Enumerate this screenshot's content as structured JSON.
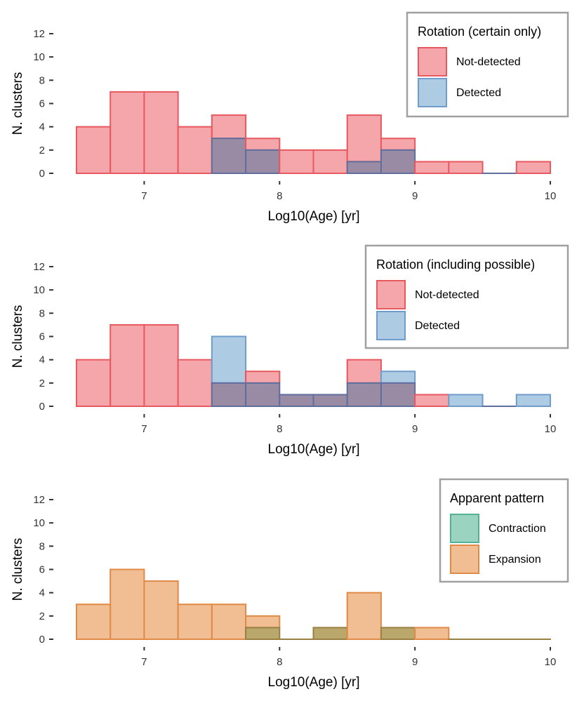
{
  "colors": {
    "red_fill": "#f4a6aa",
    "red_stroke": "#e8585f",
    "blue_fill": "#aecbe4",
    "blue_stroke": "#6f9ccb",
    "overlap_fill": "#9a8ba5",
    "overlap_stroke": "#5f6e9d",
    "green_fill": "#9ad3bf",
    "green_stroke": "#52b292",
    "orange_fill": "#f1bd92",
    "orange_stroke": "#e08a47",
    "olive_fill": "#b9a76c",
    "olive_stroke": "#9a8040",
    "axis": "#333333",
    "legend_border": "#a0a0a0"
  },
  "chart_data": [
    {
      "type": "bar",
      "subtype": "overlaid-histogram",
      "title": "",
      "xlabel": "Log10(Age) [yr]",
      "ylabel": "N. clusters",
      "xlim": [
        6.5,
        10
      ],
      "ylim": [
        0,
        12
      ],
      "xticks": [
        "7",
        "8",
        "9",
        "10"
      ],
      "yticks": [
        "0",
        "2",
        "4",
        "6",
        "8",
        "10",
        "12"
      ],
      "bin_edges": [
        6.5,
        6.75,
        7.0,
        7.25,
        7.5,
        7.75,
        8.0,
        8.25,
        8.5,
        8.75,
        9.0,
        9.25,
        9.5,
        9.75,
        10.0
      ],
      "legend": {
        "title": "Rotation (certain only)",
        "placement": "top-right"
      },
      "series": [
        {
          "name": "Not-detected",
          "color": "red",
          "values": [
            4,
            7,
            7,
            4,
            5,
            3,
            2,
            2,
            5,
            3,
            1,
            1,
            0,
            1
          ]
        },
        {
          "name": "Detected",
          "color": "blue",
          "values": [
            0,
            0,
            0,
            0,
            3,
            2,
            0,
            0,
            1,
            2,
            0,
            0,
            0,
            0
          ]
        }
      ]
    },
    {
      "type": "bar",
      "subtype": "overlaid-histogram",
      "title": "",
      "xlabel": "Log10(Age) [yr]",
      "ylabel": "N. clusters",
      "xlim": [
        6.5,
        10
      ],
      "ylim": [
        0,
        12
      ],
      "xticks": [
        "7",
        "8",
        "9",
        "10"
      ],
      "yticks": [
        "0",
        "2",
        "4",
        "6",
        "8",
        "10",
        "12"
      ],
      "bin_edges": [
        6.5,
        6.75,
        7.0,
        7.25,
        7.5,
        7.75,
        8.0,
        8.25,
        8.5,
        8.75,
        9.0,
        9.25,
        9.5,
        9.75,
        10.0
      ],
      "legend": {
        "title": "Rotation (including possible)",
        "placement": "top-right"
      },
      "series": [
        {
          "name": "Not-detected",
          "color": "red",
          "values": [
            4,
            7,
            7,
            4,
            2,
            3,
            1,
            1,
            4,
            2,
            1,
            0,
            0,
            0
          ]
        },
        {
          "name": "Detected",
          "color": "blue",
          "values": [
            0,
            0,
            0,
            0,
            6,
            2,
            1,
            1,
            2,
            3,
            0,
            1,
            0,
            1
          ]
        }
      ]
    },
    {
      "type": "bar",
      "subtype": "overlaid-histogram",
      "title": "",
      "xlabel": "Log10(Age) [yr]",
      "ylabel": "N. clusters",
      "xlim": [
        6.5,
        10
      ],
      "ylim": [
        0,
        12
      ],
      "xticks": [
        "7",
        "8",
        "9",
        "10"
      ],
      "yticks": [
        "0",
        "2",
        "4",
        "6",
        "8",
        "10",
        "12"
      ],
      "bin_edges": [
        6.5,
        6.75,
        7.0,
        7.25,
        7.5,
        7.75,
        8.0,
        8.25,
        8.5,
        8.75,
        9.0,
        9.25,
        9.5,
        9.75,
        10.0
      ],
      "legend": {
        "title": "Apparent pattern",
        "placement": "top-right"
      },
      "series": [
        {
          "name": "Contraction",
          "color": "green",
          "values": [
            0,
            0,
            0,
            0,
            0,
            1,
            0,
            1,
            0,
            1,
            0,
            0,
            0,
            0
          ]
        },
        {
          "name": "Expansion",
          "color": "orange",
          "values": [
            3,
            6,
            5,
            3,
            3,
            2,
            0,
            1,
            4,
            1,
            1,
            0,
            0,
            0
          ]
        }
      ]
    }
  ]
}
